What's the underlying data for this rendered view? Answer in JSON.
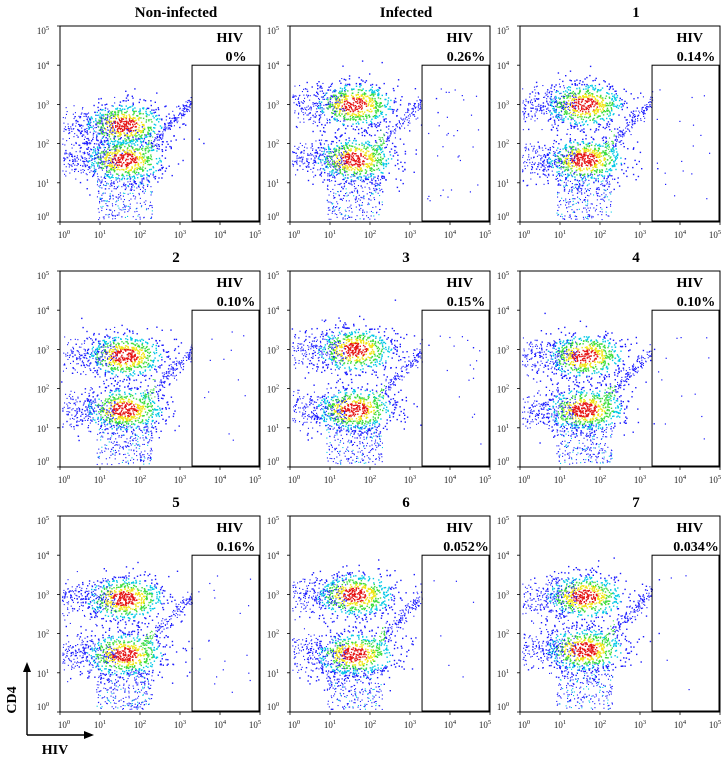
{
  "figure": {
    "y_axis_label": "CD4",
    "x_axis_label": "HIV"
  },
  "chart_data": [
    {
      "type": "scatter",
      "title": "Non-infected",
      "gate_label": "HIV",
      "gate_percent": "0%",
      "gate_fraction_percent": 0,
      "x_scale": "log",
      "y_scale": "log",
      "xlim": [
        1,
        100000
      ],
      "ylim": [
        1,
        100000
      ],
      "x_ticks": [
        "10^0",
        "10^1",
        "10^2",
        "10^3",
        "10^4",
        "10^5"
      ],
      "y_ticks": [
        "10^0",
        "10^1",
        "10^2",
        "10^3",
        "10^4",
        "10^5"
      ],
      "gate": {
        "x": [
          2000,
          100000
        ],
        "y": [
          1,
          10000
        ]
      },
      "populations": [
        {
          "name": "",
          "x_center": 40,
          "y_center": 300
        },
        {
          "name": "",
          "x_center": 40,
          "y_center": 40
        }
      ]
    },
    {
      "type": "scatter",
      "title": "Infected",
      "gate_label": "HIV",
      "gate_percent": "0.26%",
      "gate_fraction_percent": 0.26,
      "x_scale": "log",
      "y_scale": "log",
      "xlim": [
        1,
        100000
      ],
      "ylim": [
        1,
        100000
      ],
      "x_ticks": [
        "10^0",
        "10^1",
        "10^2",
        "10^3",
        "10^4",
        "10^5"
      ],
      "y_ticks": [
        "10^0",
        "10^1",
        "10^2",
        "10^3",
        "10^4",
        "10^5"
      ],
      "gate": {
        "x": [
          2000,
          100000
        ],
        "y": [
          1,
          10000
        ]
      },
      "populations": [
        {
          "name": "",
          "x_center": 40,
          "y_center": 1000
        },
        {
          "name": "",
          "x_center": 40,
          "y_center": 40
        }
      ]
    },
    {
      "type": "scatter",
      "title": "1",
      "gate_label": "HIV",
      "gate_percent": "0.14%",
      "gate_fraction_percent": 0.14,
      "x_scale": "log",
      "y_scale": "log",
      "xlim": [
        1,
        100000
      ],
      "ylim": [
        1,
        100000
      ],
      "x_ticks": [
        "10^0",
        "10^1",
        "10^2",
        "10^3",
        "10^4",
        "10^5"
      ],
      "y_ticks": [
        "10^0",
        "10^1",
        "10^2",
        "10^3",
        "10^4",
        "10^5"
      ],
      "gate": {
        "x": [
          2000,
          100000
        ],
        "y": [
          1,
          10000
        ]
      },
      "populations": [
        {
          "name": "",
          "x_center": 40,
          "y_center": 1000
        },
        {
          "name": "",
          "x_center": 40,
          "y_center": 40
        }
      ]
    },
    {
      "type": "scatter",
      "title": "2",
      "gate_label": "HIV",
      "gate_percent": "0.10%",
      "gate_fraction_percent": 0.1,
      "x_scale": "log",
      "y_scale": "log",
      "xlim": [
        1,
        100000
      ],
      "ylim": [
        1,
        100000
      ],
      "x_ticks": [
        "10^0",
        "10^1",
        "10^2",
        "10^3",
        "10^4",
        "10^5"
      ],
      "y_ticks": [
        "10^0",
        "10^1",
        "10^2",
        "10^3",
        "10^4",
        "10^5"
      ],
      "gate": {
        "x": [
          2000,
          100000
        ],
        "y": [
          1,
          10000
        ]
      },
      "populations": [
        {
          "name": "",
          "x_center": 40,
          "y_center": 700
        },
        {
          "name": "",
          "x_center": 40,
          "y_center": 30
        }
      ]
    },
    {
      "type": "scatter",
      "title": "3",
      "gate_label": "HIV",
      "gate_percent": "0.15%",
      "gate_fraction_percent": 0.15,
      "x_scale": "log",
      "y_scale": "log",
      "xlim": [
        1,
        100000
      ],
      "ylim": [
        1,
        100000
      ],
      "x_ticks": [
        "10^0",
        "10^1",
        "10^2",
        "10^3",
        "10^4",
        "10^5"
      ],
      "y_ticks": [
        "10^0",
        "10^1",
        "10^2",
        "10^3",
        "10^4",
        "10^5"
      ],
      "gate": {
        "x": [
          2000,
          100000
        ],
        "y": [
          1,
          10000
        ]
      },
      "populations": [
        {
          "name": "",
          "x_center": 40,
          "y_center": 1000
        },
        {
          "name": "",
          "x_center": 40,
          "y_center": 30
        }
      ]
    },
    {
      "type": "scatter",
      "title": "4",
      "gate_label": "HIV",
      "gate_percent": "0.10%",
      "gate_fraction_percent": 0.1,
      "x_scale": "log",
      "y_scale": "log",
      "xlim": [
        1,
        100000
      ],
      "ylim": [
        1,
        100000
      ],
      "x_ticks": [
        "10^0",
        "10^1",
        "10^2",
        "10^3",
        "10^4",
        "10^5"
      ],
      "y_ticks": [
        "10^0",
        "10^1",
        "10^2",
        "10^3",
        "10^4",
        "10^5"
      ],
      "gate": {
        "x": [
          2000,
          100000
        ],
        "y": [
          1,
          10000
        ]
      },
      "populations": [
        {
          "name": "",
          "x_center": 40,
          "y_center": 700
        },
        {
          "name": "",
          "x_center": 40,
          "y_center": 30
        }
      ]
    },
    {
      "type": "scatter",
      "title": "5",
      "gate_label": "HIV",
      "gate_percent": "0.16%",
      "gate_fraction_percent": 0.16,
      "x_scale": "log",
      "y_scale": "log",
      "xlim": [
        1,
        100000
      ],
      "ylim": [
        1,
        100000
      ],
      "x_ticks": [
        "10^0",
        "10^1",
        "10^2",
        "10^3",
        "10^4",
        "10^5"
      ],
      "y_ticks": [
        "10^0",
        "10^1",
        "10^2",
        "10^3",
        "10^4",
        "10^5"
      ],
      "gate": {
        "x": [
          2000,
          100000
        ],
        "y": [
          1,
          10000
        ]
      },
      "populations": [
        {
          "name": "",
          "x_center": 40,
          "y_center": 800
        },
        {
          "name": "",
          "x_center": 40,
          "y_center": 30
        }
      ]
    },
    {
      "type": "scatter",
      "title": "6",
      "gate_label": "HIV",
      "gate_percent": "0.052%",
      "gate_fraction_percent": 0.052,
      "x_scale": "log",
      "y_scale": "log",
      "xlim": [
        1,
        100000
      ],
      "ylim": [
        1,
        100000
      ],
      "x_ticks": [
        "10^0",
        "10^1",
        "10^2",
        "10^3",
        "10^4",
        "10^5"
      ],
      "y_ticks": [
        "10^0",
        "10^1",
        "10^2",
        "10^3",
        "10^4",
        "10^5"
      ],
      "gate": {
        "x": [
          2000,
          100000
        ],
        "y": [
          1,
          10000
        ]
      },
      "populations": [
        {
          "name": "",
          "x_center": 40,
          "y_center": 1000
        },
        {
          "name": "",
          "x_center": 40,
          "y_center": 30
        }
      ]
    },
    {
      "type": "scatter",
      "title": "7",
      "gate_label": "HIV",
      "gate_percent": "0.034%",
      "gate_fraction_percent": 0.034,
      "x_scale": "log",
      "y_scale": "log",
      "xlim": [
        1,
        100000
      ],
      "ylim": [
        1,
        100000
      ],
      "x_ticks": [
        "10^0",
        "10^1",
        "10^2",
        "10^3",
        "10^4",
        "10^5"
      ],
      "y_ticks": [
        "10^0",
        "10^1",
        "10^2",
        "10^3",
        "10^4",
        "10^5"
      ],
      "gate": {
        "x": [
          2000,
          100000
        ],
        "y": [
          1,
          10000
        ]
      },
      "populations": [
        {
          "name": "",
          "x_center": 40,
          "y_center": 900
        },
        {
          "name": "",
          "x_center": 40,
          "y_center": 40
        }
      ]
    }
  ],
  "colors": {
    "density_low": "#1a1aff",
    "density_mid_low": "#00c8e6",
    "density_mid": "#3cdc3c",
    "density_mid_high": "#f0e614",
    "density_high": "#e61414",
    "frame": "#000000",
    "axis_text": "#000000"
  }
}
